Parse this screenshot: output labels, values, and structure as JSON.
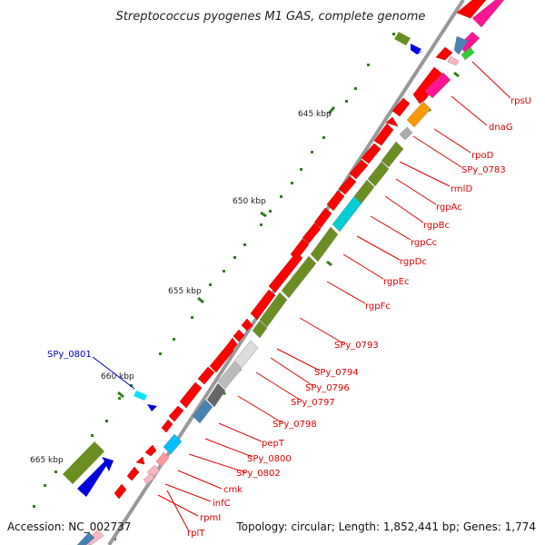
{
  "title": "Streptococcus pyogenes M1 GAS, complete genome",
  "footer": {
    "accession": "Accession: NC_002737",
    "summary": "Topology: circular; Length: 1,852,441 bp; Genes: 1,774"
  },
  "ticks": [
    "645 kbp",
    "650 kbp",
    "655 kbp",
    "660 kbp",
    "665 kbp"
  ],
  "genes": [
    {
      "name": "rpsU",
      "color": "#e00000"
    },
    {
      "name": "dnaG",
      "color": "#e00000"
    },
    {
      "name": "rpoD",
      "color": "#e00000"
    },
    {
      "name": "SPy_0783",
      "color": "#e00000"
    },
    {
      "name": "rmlD",
      "color": "#e00000"
    },
    {
      "name": "rgpAc",
      "color": "#e00000"
    },
    {
      "name": "rgpBc",
      "color": "#e00000"
    },
    {
      "name": "rgpCc",
      "color": "#e00000"
    },
    {
      "name": "rgpDc",
      "color": "#e00000"
    },
    {
      "name": "rgpEc",
      "color": "#e00000"
    },
    {
      "name": "rgpFc",
      "color": "#e00000"
    },
    {
      "name": "SPy_0793",
      "color": "#e00000"
    },
    {
      "name": "SPy_0794",
      "color": "#e00000"
    },
    {
      "name": "SPy_0796",
      "color": "#e00000"
    },
    {
      "name": "SPy_0797",
      "color": "#e00000"
    },
    {
      "name": "SPy_0798",
      "color": "#e00000"
    },
    {
      "name": "pepT",
      "color": "#e00000"
    },
    {
      "name": "SPy_0800",
      "color": "#e00000"
    },
    {
      "name": "SPy_0802",
      "color": "#e00000"
    },
    {
      "name": "cmk",
      "color": "#e00000"
    },
    {
      "name": "infC",
      "color": "#e00000"
    },
    {
      "name": "rpmI",
      "color": "#e00000"
    },
    {
      "name": "rplT",
      "color": "#e00000"
    },
    {
      "name": "SPy_0801",
      "color": "#0000cc"
    }
  ]
}
